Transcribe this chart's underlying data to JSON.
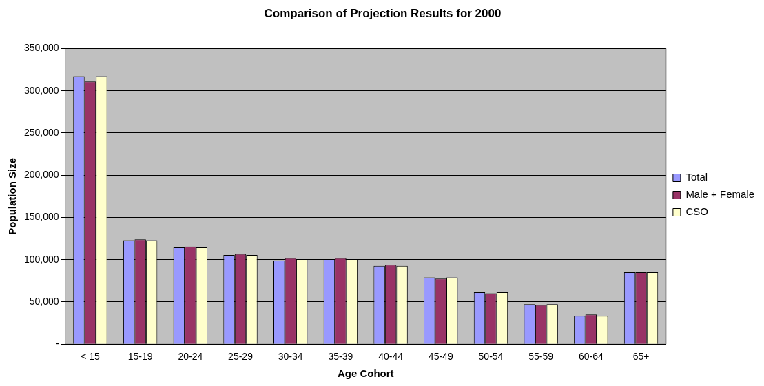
{
  "chart_data": {
    "type": "bar",
    "title": "Comparison of Projection Results for 2000",
    "xlabel": "Age Cohort",
    "ylabel": "Population Size",
    "categories": [
      "< 15",
      "15-19",
      "20-24",
      "25-29",
      "30-34",
      "35-39",
      "40-44",
      "45-49",
      "50-54",
      "55-59",
      "60-64",
      "65+"
    ],
    "series": [
      {
        "name": "Total",
        "color": "#9999ff",
        "values": [
          317200,
          123000,
          114400,
          105500,
          99100,
          100600,
          92500,
          78900,
          61300,
          47400,
          33500,
          85000
        ]
      },
      {
        "name": "Male + Female",
        "color": "#993366",
        "values": [
          310900,
          124100,
          115500,
          106600,
          101700,
          101700,
          93900,
          77500,
          60100,
          46200,
          35000,
          85000
        ]
      },
      {
        "name": "CSO",
        "color": "#ffffcc",
        "values": [
          317200,
          123000,
          114400,
          105500,
          100600,
          100600,
          92500,
          78900,
          61300,
          47400,
          33500,
          85000
        ]
      }
    ],
    "ylim": [
      0,
      350000
    ],
    "yticks": [
      {
        "value": 0,
        "label": "-"
      },
      {
        "value": 50000,
        "label": "50,000"
      },
      {
        "value": 100000,
        "label": "100,000"
      },
      {
        "value": 150000,
        "label": "150,000"
      },
      {
        "value": 200000,
        "label": "200,000"
      },
      {
        "value": 250000,
        "label": "250,000"
      },
      {
        "value": 300000,
        "label": "300,000"
      },
      {
        "value": 350000,
        "label": "350,000"
      }
    ],
    "grid": "y",
    "legend": "right"
  }
}
